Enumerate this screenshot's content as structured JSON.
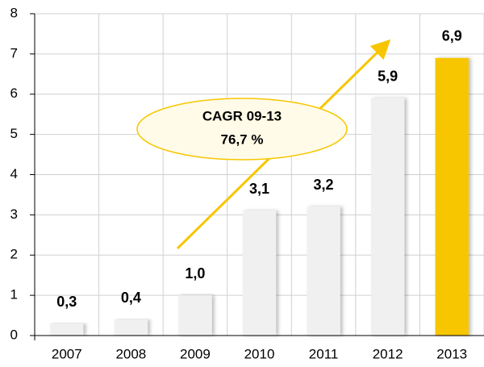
{
  "chart_data": {
    "type": "bar",
    "categories": [
      "2007",
      "2008",
      "2009",
      "2010",
      "2011",
      "2012",
      "2013"
    ],
    "values": [
      0.3,
      0.4,
      1.0,
      3.1,
      3.2,
      5.9,
      6.9
    ],
    "value_labels": [
      "0,3",
      "0,4",
      "1,0",
      "3,1",
      "3,2",
      "5,9",
      "6,9"
    ],
    "colors": [
      "#f0f0f0",
      "#f0f0f0",
      "#f0f0f0",
      "#f0f0f0",
      "#f0f0f0",
      "#f0f0f0",
      "#f7c600"
    ],
    "ylim": [
      0,
      8
    ],
    "yticks": [
      0,
      1,
      2,
      3,
      4,
      5,
      6,
      7,
      8
    ],
    "grid": true,
    "annotations": [
      "CAGR 09-13",
      "76,7 %"
    ]
  }
}
